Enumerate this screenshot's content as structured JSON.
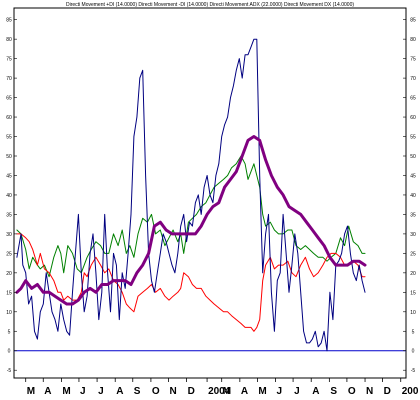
{
  "chart_data": {
    "type": "line",
    "title": "Directi Movement +DI (14.0000) Directi Movement -DI (14.0000) Directi Movement ADX (22.0000) Directi Movement DX (14.0000)",
    "xlabel": "",
    "ylabel": "",
    "ylim": [
      -7,
      88
    ],
    "yticks": [
      -5,
      0,
      5,
      10,
      15,
      20,
      25,
      30,
      35,
      40,
      45,
      50,
      55,
      60,
      65,
      70,
      75,
      80,
      85
    ],
    "x_tick_labels": [
      "M",
      "A",
      "M",
      "J",
      "J",
      "A",
      "S",
      "O",
      "N",
      "D",
      "2004",
      "M",
      "A",
      "M",
      "J",
      "J",
      "A",
      "S",
      "O",
      "N",
      "D",
      "200"
    ],
    "x_tick_days": [
      0,
      30,
      61,
      91,
      122,
      153,
      183,
      214,
      244,
      275,
      310,
      335,
      366,
      396,
      427,
      457,
      488,
      519,
      549,
      580,
      610,
      641
    ],
    "x_range": [
      -20,
      650
    ],
    "grid": false,
    "colors": {
      "background": "#ffffff",
      "frame": "#000000",
      "zero_line": "#0000cc"
    },
    "series": [
      {
        "color": "#008000",
        "x": [
          -15,
          -8,
          0,
          6,
          12,
          20,
          25,
          32,
          40,
          48,
          55,
          60,
          65,
          72,
          80,
          88,
          95,
          100,
          105,
          112,
          120,
          128,
          135,
          142,
          150,
          158,
          165,
          172,
          178,
          185,
          192,
          200,
          208,
          215,
          222,
          230,
          238,
          245,
          252,
          260,
          265,
          270,
          278,
          285,
          292,
          300,
          308,
          315,
          322,
          330,
          338,
          345,
          352,
          360,
          368,
          375,
          380,
          385,
          390,
          395,
          400,
          405,
          410,
          418,
          425,
          432,
          440,
          448,
          455,
          462,
          470,
          478,
          485,
          492,
          500,
          508,
          515,
          522,
          530,
          538,
          545,
          552,
          560,
          568,
          575,
          580
        ],
        "y": [
          31,
          30,
          26,
          21,
          24,
          22,
          21,
          22,
          19,
          24,
          27,
          25,
          20,
          27,
          25,
          21,
          20,
          22,
          24,
          26,
          28,
          27,
          25,
          25,
          30,
          27,
          31,
          25,
          27,
          24,
          30,
          34,
          33,
          35,
          30,
          31,
          27,
          29,
          31,
          28,
          30,
          25,
          33,
          34,
          35,
          37,
          38,
          40,
          42,
          43,
          44,
          45,
          47,
          48,
          50,
          48,
          44,
          46,
          48,
          45,
          42,
          35,
          32,
          33,
          31,
          30,
          30,
          31,
          31,
          27,
          26,
          27,
          26,
          25,
          24,
          24,
          23,
          24,
          25,
          29,
          27,
          32,
          28,
          27,
          25,
          25
        ]
      },
      {
        "color": "#ff0000",
        "x": [
          -15,
          -8,
          0,
          6,
          12,
          20,
          25,
          32,
          40,
          48,
          55,
          60,
          65,
          72,
          80,
          88,
          95,
          100,
          105,
          112,
          120,
          128,
          135,
          142,
          150,
          158,
          165,
          172,
          178,
          185,
          192,
          200,
          208,
          215,
          222,
          230,
          238,
          245,
          252,
          260,
          265,
          270,
          278,
          285,
          292,
          300,
          308,
          315,
          322,
          330,
          338,
          345,
          352,
          360,
          368,
          375,
          380,
          385,
          390,
          395,
          400,
          405,
          410,
          418,
          425,
          432,
          440,
          448,
          455,
          462,
          470,
          478,
          485,
          492,
          500,
          508,
          515,
          522,
          530,
          538,
          545,
          552,
          560,
          568,
          575,
          580
        ],
        "y": [
          30,
          30,
          29,
          28,
          26,
          22,
          25,
          21,
          20,
          18,
          15,
          15,
          13,
          14,
          13,
          13,
          15,
          20,
          19,
          22,
          24,
          22,
          20,
          21,
          18,
          17,
          15,
          12,
          11,
          10,
          14,
          15,
          16,
          17,
          15,
          16,
          14,
          13,
          14,
          15,
          16,
          20,
          19,
          17,
          16,
          16,
          14,
          13,
          12,
          11,
          10,
          10,
          9,
          8,
          7,
          6,
          6,
          6,
          5,
          6,
          8,
          18,
          22,
          24,
          21,
          22,
          22,
          23,
          20,
          19,
          22,
          24,
          21,
          19,
          20,
          22,
          24,
          25,
          25,
          24,
          22,
          22,
          23,
          22,
          19,
          19
        ]
      },
      {
        "color": "#000080",
        "x": [
          -15,
          -8,
          -5,
          0,
          5,
          10,
          15,
          20,
          25,
          30,
          35,
          40,
          45,
          50,
          55,
          60,
          65,
          70,
          75,
          80,
          85,
          90,
          95,
          100,
          105,
          110,
          115,
          120,
          125,
          130,
          135,
          140,
          145,
          150,
          155,
          160,
          165,
          170,
          175,
          180,
          185,
          190,
          195,
          200,
          205,
          210,
          215,
          220,
          225,
          230,
          235,
          240,
          245,
          250,
          255,
          260,
          265,
          270,
          275,
          280,
          285,
          290,
          295,
          300,
          305,
          310,
          315,
          320,
          325,
          330,
          335,
          340,
          345,
          350,
          355,
          360,
          365,
          370,
          375,
          380,
          385,
          390,
          395,
          400,
          405,
          410,
          415,
          420,
          425,
          430,
          435,
          440,
          445,
          450,
          455,
          460,
          465,
          470,
          475,
          480,
          485,
          490,
          495,
          500,
          505,
          510,
          515,
          520,
          525,
          530,
          535,
          540,
          545,
          550,
          555,
          560,
          565,
          570,
          575,
          580
        ],
        "y": [
          24,
          30,
          22,
          20,
          12,
          14,
          5,
          3,
          10,
          12,
          20,
          15,
          10,
          8,
          5,
          12,
          8,
          5,
          4,
          15,
          25,
          35,
          20,
          10,
          14,
          25,
          30,
          20,
          8,
          15,
          35,
          20,
          10,
          25,
          22,
          8,
          20,
          16,
          25,
          35,
          55,
          60,
          70,
          72,
          45,
          25,
          18,
          15,
          20,
          25,
          30,
          28,
          25,
          22,
          20,
          25,
          32,
          35,
          28,
          33,
          32,
          38,
          40,
          35,
          42,
          45,
          40,
          38,
          45,
          48,
          55,
          58,
          60,
          65,
          68,
          72,
          75,
          70,
          76,
          76,
          78,
          80,
          80,
          45,
          20,
          30,
          35,
          15,
          5,
          18,
          20,
          35,
          25,
          15,
          22,
          30,
          25,
          15,
          5,
          2,
          2,
          3,
          5,
          1,
          2,
          5,
          0,
          15,
          8,
          22,
          23,
          25,
          30,
          32,
          25,
          20,
          18,
          22,
          18,
          15
        ]
      },
      {
        "color": "#800080",
        "stroke_width": "thick",
        "x": [
          -15,
          -8,
          0,
          10,
          20,
          30,
          40,
          50,
          60,
          70,
          80,
          90,
          100,
          110,
          120,
          130,
          140,
          150,
          160,
          170,
          180,
          190,
          200,
          210,
          220,
          230,
          240,
          250,
          260,
          270,
          280,
          290,
          300,
          310,
          320,
          330,
          340,
          350,
          360,
          370,
          380,
          390,
          400,
          410,
          420,
          430,
          440,
          450,
          460,
          470,
          480,
          490,
          500,
          510,
          520,
          530,
          540,
          550,
          560,
          570,
          580
        ],
        "y": [
          15,
          16,
          18,
          16,
          17,
          15,
          15,
          14,
          13,
          12,
          12,
          13,
          15,
          16,
          15,
          17,
          17,
          18,
          18,
          18,
          17,
          20,
          22,
          25,
          32,
          33,
          31,
          30,
          30,
          30,
          30,
          30,
          32,
          35,
          37,
          38,
          42,
          44,
          46,
          50,
          54,
          55,
          54,
          49,
          45,
          42,
          40,
          37,
          36,
          35,
          33,
          31,
          29,
          27,
          24,
          22,
          22,
          22,
          23,
          23,
          22
        ]
      }
    ]
  }
}
